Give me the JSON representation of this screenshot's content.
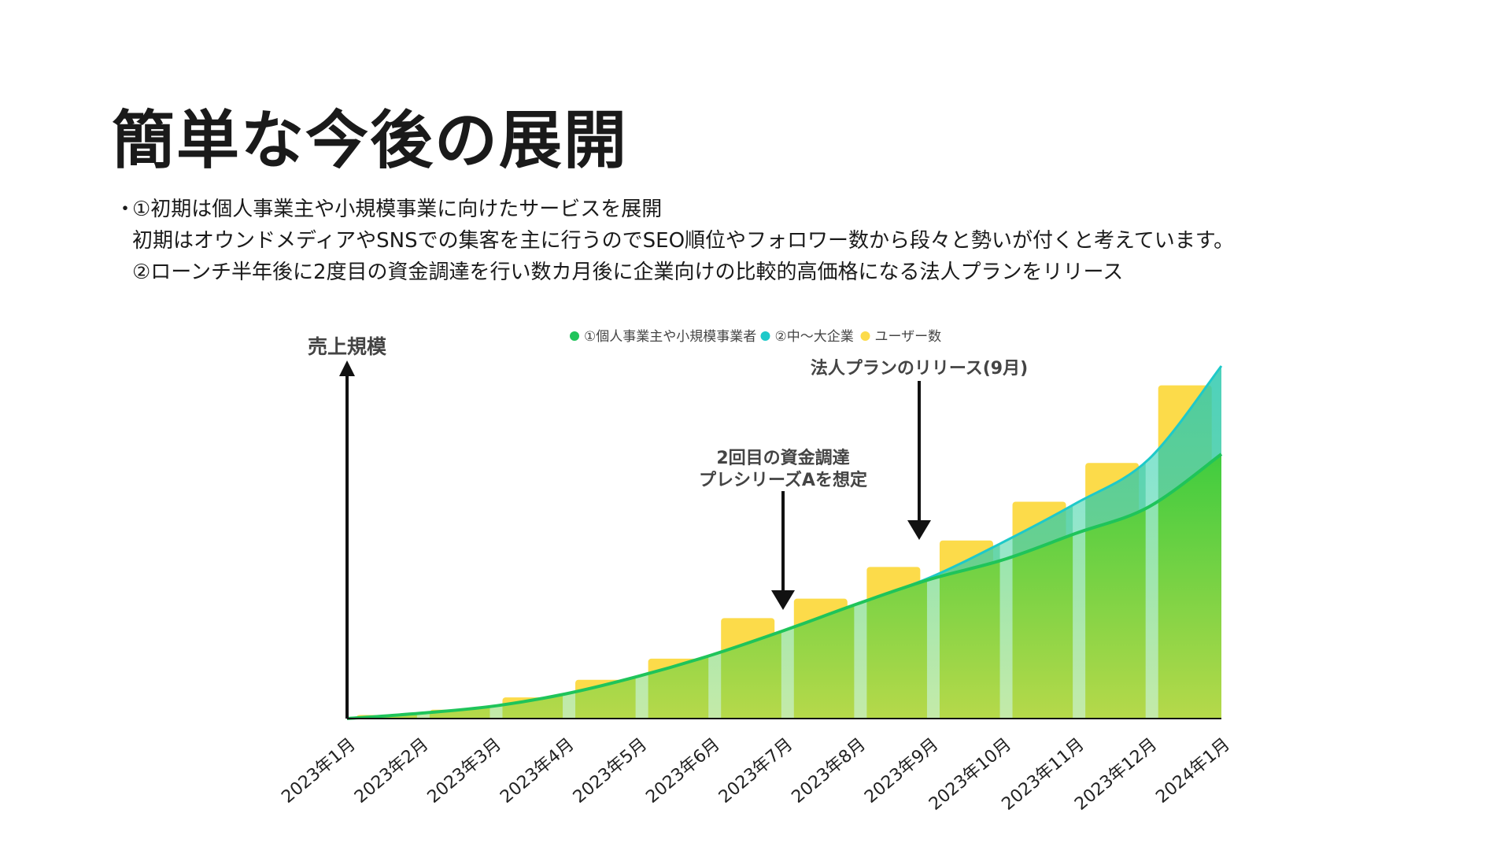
{
  "slide": {
    "title": "簡単な今後の展開",
    "bullets": [
      "①初期は個人事業主や小規模事業に向けたサービスを展開",
      "初期はオウンドメディアやSNSでの集客を主に行うのでSEO順位やフォロワー数から段々と勢いが付くと考えています。",
      "②ローンチ半年後に2度目の資金調達を行い数カ月後に企業向けの比較的高価格になる法人プランをリリース"
    ],
    "bullet_marker": "・"
  },
  "chart_data": {
    "type": "bar",
    "ylabel": "売上規模",
    "categories": [
      "2023年1月",
      "2023年2月",
      "2023年3月",
      "2023年4月",
      "2023年5月",
      "2023年6月",
      "2023年7月",
      "2023年8月",
      "2023年9月",
      "2023年10月",
      "2023年11月",
      "2023年12月",
      "2024年1月"
    ],
    "series": [
      {
        "name": "①個人事業主や小規模事業者",
        "type": "area",
        "color": "#1fc45a",
        "values": [
          0,
          3,
          7,
          14,
          24,
          36,
          50,
          65,
          79,
          90,
          105,
          120,
          150
        ]
      },
      {
        "name": "②中〜大企業",
        "type": "area",
        "color": "#1ec9c9",
        "values": [
          0,
          3,
          7,
          14,
          24,
          36,
          50,
          65,
          80,
          100,
          122,
          147,
          200
        ]
      },
      {
        "name": "ユーザー数",
        "type": "bar",
        "color": "#fcdb4a",
        "values": [
          1,
          2,
          5,
          12,
          22,
          34,
          57,
          68,
          86,
          101,
          123,
          145,
          189
        ]
      }
    ],
    "ylim": [
      0,
      200
    ],
    "legend_position": "top",
    "annotations": [
      {
        "text_lines": [
          "2回目の資金調達",
          "プレシリーズAを想定"
        ],
        "at": "2023年7月"
      },
      {
        "text_lines": [
          "法人プランのリリース(9月)"
        ],
        "at": "2023年9月"
      }
    ]
  }
}
